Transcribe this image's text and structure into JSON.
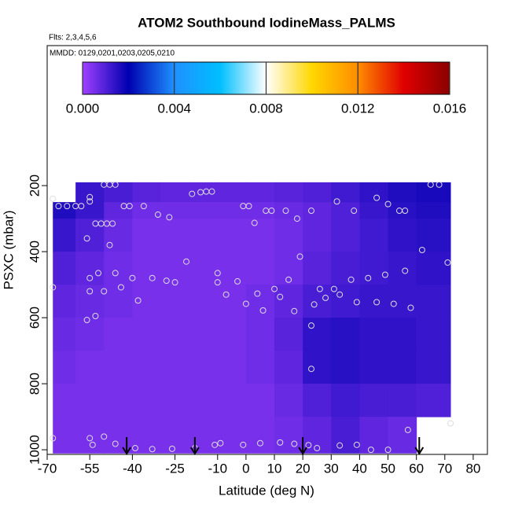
{
  "chart_data": {
    "type": "heatmap",
    "title": "ATOM2 Southbound IodineMass_PALMS",
    "annotations": [
      "Flts: 2,3,4,5,6",
      "MMDD: 0129,0201,0203,0205,0210"
    ],
    "x_label": "Latitude (deg N)",
    "y_label": "PSXC (mbar)",
    "xlim": [
      -70,
      85
    ],
    "xticks": [
      -70,
      -55,
      -40,
      -25,
      -10,
      0,
      10,
      20,
      30,
      40,
      50,
      60,
      70,
      80
    ],
    "ylim": [
      1014,
      -224
    ],
    "yticks": [
      200,
      400,
      600,
      800,
      1000
    ],
    "x_edges": [
      -68,
      -60,
      -50,
      -40,
      -30,
      -20,
      -10,
      0,
      10,
      20,
      30,
      40,
      50,
      60,
      72
    ],
    "y_edges": [
      190,
      250,
      300,
      400,
      500,
      600,
      700,
      800,
      900,
      1010
    ],
    "z": [
      [
        null,
        0.0013,
        0.0011,
        0.0009,
        0.0008,
        0.0008,
        0.0008,
        0.0008,
        0.0009,
        0.001,
        0.0012,
        0.0014,
        0.0016,
        0.0017
      ],
      [
        0.0016,
        0.0013,
        0.0008,
        0.0006,
        0.0006,
        0.0006,
        0.0006,
        0.0006,
        0.0007,
        0.0008,
        0.001,
        0.0013,
        0.0015,
        0.0016
      ],
      [
        0.0013,
        0.001,
        0.0007,
        0.0005,
        0.0005,
        0.0005,
        0.0005,
        0.0005,
        0.0006,
        0.0008,
        0.001,
        0.0012,
        0.0014,
        0.0015
      ],
      [
        0.001,
        0.0008,
        0.0006,
        0.0005,
        0.0005,
        0.0005,
        0.0005,
        0.0005,
        0.0006,
        0.0009,
        0.0011,
        0.0012,
        0.0013,
        0.0014
      ],
      [
        0.0008,
        0.0007,
        0.0006,
        0.0005,
        0.0005,
        0.0005,
        0.0005,
        0.0006,
        0.0008,
        0.0011,
        0.0012,
        0.0013,
        0.0013,
        0.0013
      ],
      [
        0.0007,
        0.0006,
        0.0005,
        0.0005,
        0.0005,
        0.0005,
        0.0005,
        0.0006,
        0.0009,
        0.0014,
        0.0015,
        0.0014,
        0.0014,
        0.0013
      ],
      [
        0.0006,
        0.0005,
        0.0005,
        0.0005,
        0.0005,
        0.0005,
        0.0005,
        0.0006,
        0.0008,
        0.0014,
        0.0015,
        0.0014,
        0.0014,
        0.0013
      ],
      [
        0.0005,
        0.0005,
        0.0005,
        0.0005,
        0.0005,
        0.0005,
        0.0005,
        0.0005,
        0.0007,
        0.001,
        0.0012,
        0.0011,
        0.0011,
        0.001
      ],
      [
        0.0005,
        0.0005,
        0.0005,
        0.0005,
        0.0005,
        0.0005,
        0.0005,
        0.0005,
        0.0006,
        0.0008,
        0.0011,
        0.0008,
        0.0007,
        null
      ]
    ],
    "colormap": [
      {
        "value": 0,
        "color": "#a040ff"
      },
      {
        "value": 0.002,
        "color": "#0000b0"
      },
      {
        "value": 0.004,
        "color": "#1e90ff"
      },
      {
        "value": 0.006,
        "color": "#00bfff"
      },
      {
        "value": 0.008,
        "color": "#ffffff"
      },
      {
        "value": 0.01,
        "color": "#ffd700"
      },
      {
        "value": 0.012,
        "color": "#ff8c00"
      },
      {
        "value": 0.014,
        "color": "#e00000"
      },
      {
        "value": 0.016,
        "color": "#8b0000"
      }
    ],
    "colorbar_lim": [
      0,
      0.016
    ],
    "colorbar_ticks": [
      {
        "value": 0,
        "label": "0.000"
      },
      {
        "value": 0.004,
        "label": "0.004"
      },
      {
        "value": 0.008,
        "label": "0.008"
      },
      {
        "value": 0.012,
        "label": "0.012"
      },
      {
        "value": 0.016,
        "label": "0.016"
      }
    ],
    "points": {
      "x": [
        -68,
        -66,
        -63,
        -60,
        -58,
        -55,
        -55,
        -53,
        -51,
        -49,
        -47,
        -50,
        -48,
        -46,
        -43,
        -41,
        -36,
        -31,
        -27,
        -19,
        -16,
        -14,
        -12,
        -1,
        1,
        3,
        7,
        9,
        14,
        18,
        23,
        32,
        38,
        46,
        50,
        54,
        56,
        65,
        68,
        -56,
        -48,
        -55,
        -52,
        -46,
        -44,
        -40,
        -38,
        -33,
        -28,
        -25,
        -21,
        -10,
        -10,
        -7,
        -3,
        0,
        4,
        6,
        10,
        12,
        15,
        17,
        19,
        24,
        26,
        28,
        31,
        33,
        37,
        39,
        43,
        46,
        49,
        52,
        56,
        58,
        62,
        71,
        -68,
        -55,
        -50,
        -56,
        -53,
        23,
        23,
        -68,
        -55,
        -50,
        -54,
        -46,
        -39,
        -33,
        -26,
        -18,
        -11,
        -9,
        -1,
        5,
        12,
        17,
        22,
        25,
        33,
        39,
        44,
        50,
        57,
        72
      ],
      "y": [
        240,
        262,
        262,
        262,
        262,
        235,
        248,
        315,
        315,
        315,
        315,
        197,
        197,
        197,
        262,
        262,
        262,
        288,
        296,
        225,
        220,
        218,
        218,
        262,
        262,
        313,
        276,
        276,
        276,
        300,
        276,
        248,
        276,
        237,
        256,
        276,
        276,
        197,
        197,
        360,
        380,
        480,
        465,
        465,
        508,
        480,
        548,
        480,
        488,
        493,
        430,
        493,
        465,
        530,
        490,
        558,
        527,
        578,
        513,
        537,
        485,
        580,
        415,
        560,
        513,
        540,
        513,
        530,
        485,
        553,
        480,
        553,
        470,
        558,
        458,
        570,
        395,
        433,
        508,
        520,
        520,
        607,
        595,
        624,
        755,
        965,
        965,
        960,
        985,
        982,
        995,
        998,
        997,
        995,
        985,
        980,
        985,
        980,
        978,
        982,
        986,
        995,
        987,
        985,
        1000,
        1000,
        940,
        920
      ]
    },
    "arrows": [
      -42,
      -18,
      20,
      61
    ]
  }
}
